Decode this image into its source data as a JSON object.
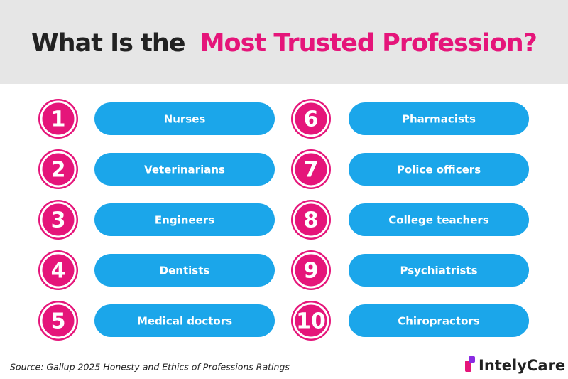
{
  "header": {
    "title_plain": "What Is the",
    "title_highlight": "Most Trusted Profession?"
  },
  "items": [
    {
      "rank": 1,
      "label": "Nurses"
    },
    {
      "rank": 2,
      "label": "Veterinarians"
    },
    {
      "rank": 3,
      "label": "Engineers"
    },
    {
      "rank": 4,
      "label": "Dentists"
    },
    {
      "rank": 5,
      "label": "Medical doctors"
    },
    {
      "rank": 6,
      "label": "Pharmacists"
    },
    {
      "rank": 7,
      "label": "Police officers"
    },
    {
      "rank": 8,
      "label": "College teachers"
    },
    {
      "rank": 9,
      "label": "Psychiatrists"
    },
    {
      "rank": 10,
      "label": "Chiropractors"
    }
  ],
  "footer": {
    "source": "Source: Gallup 2025 Honesty and Ethics of Professions Ratings",
    "logo": "IntelyCare"
  }
}
